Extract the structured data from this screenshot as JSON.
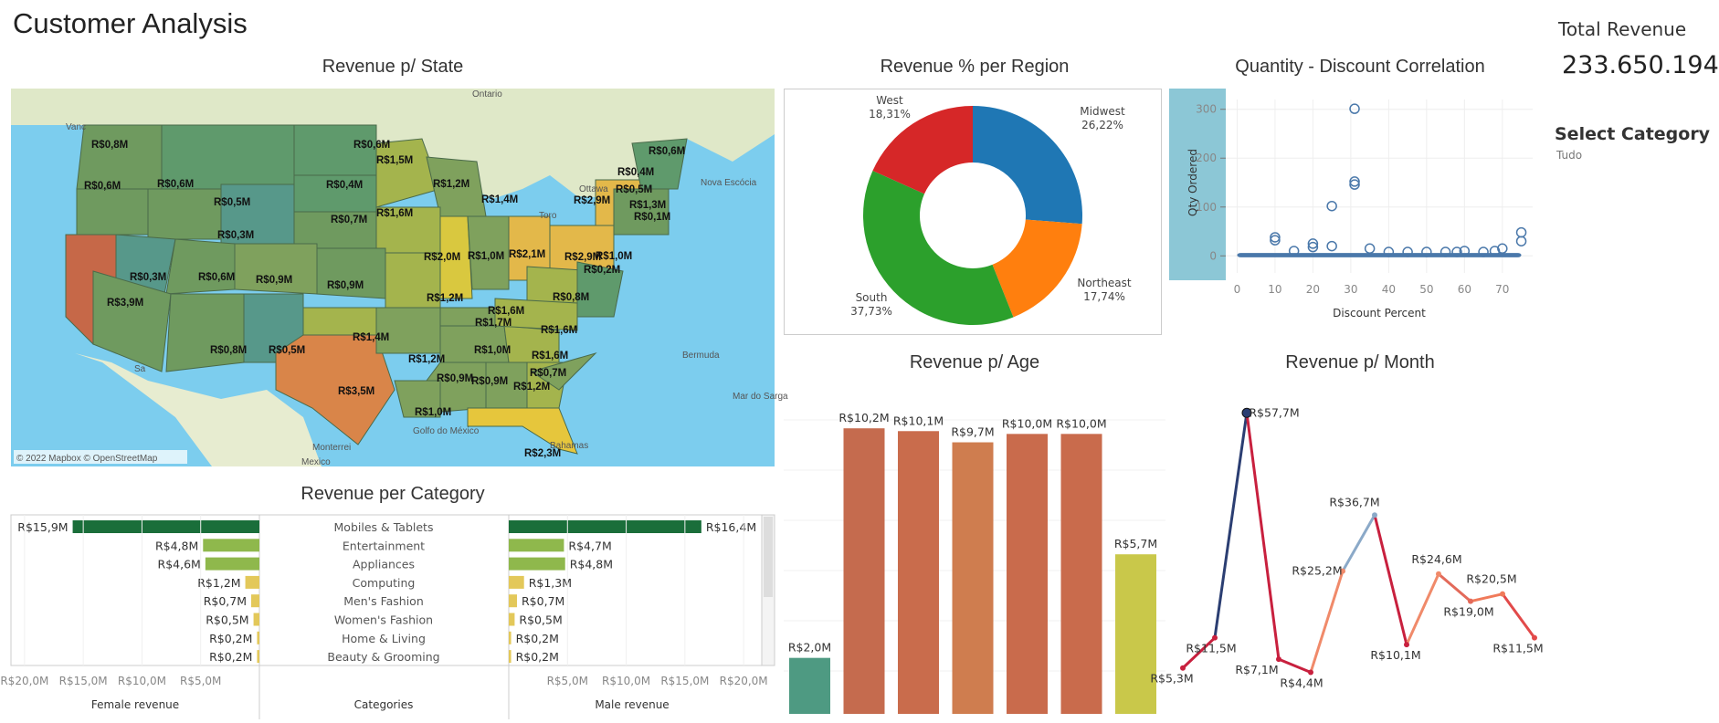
{
  "dashboard": {
    "title": "Customer Analysis",
    "total_revenue_label": "Total Revenue",
    "total_revenue_value": "233.650.194",
    "filter_label": "Select Category",
    "filter_value": "Tudo"
  },
  "map": {
    "title": "Revenue p/ State",
    "attribution": "© 2022 Mapbox © OpenStreetMap",
    "places": [
      "Ontario",
      "Vanc",
      "Ottawa",
      "Toro",
      "Nova Escócia",
      "Bermuda",
      "Mar do Sarga",
      "Golfo do México",
      "Monterrei",
      "Bahamas",
      "Mexico",
      "Sa"
    ],
    "state_labels": [
      "R$0,8M",
      "R$0,6M",
      "R$0,6M",
      "R$0,6M",
      "R$0,5M",
      "R$0,4M",
      "R$1,5M",
      "R$1,2M",
      "R$0,3M",
      "R$0,7M",
      "R$1,6M",
      "R$1,4M",
      "R$2,9M",
      "R$0,5M",
      "R$0,4M",
      "R$0,6M",
      "R$1,3M",
      "R$0,1M",
      "R$0,3M",
      "R$0,6M",
      "R$0,9M",
      "R$0,9M",
      "R$2,0M",
      "R$1,0M",
      "R$2,1M",
      "R$2,9M",
      "R$1,0M",
      "R$3,9M",
      "R$1,6M",
      "R$1,2M",
      "R$0,8M",
      "R$0,2M",
      "R$1,7M",
      "R$1,6M",
      "R$1,4M",
      "R$1,0M",
      "R$1,6M",
      "R$0,8M",
      "R$0,5M",
      "R$1,2M",
      "R$0,9M",
      "R$0,7M",
      "R$3,5M",
      "R$0,9M",
      "R$1,2M",
      "R$1,0M",
      "R$2,3M"
    ]
  },
  "donut": {
    "title": "Revenue % per Region",
    "slices": [
      {
        "name": "Midwest",
        "pct": "26,22%",
        "color": "#1f77b4"
      },
      {
        "name": "Northeast",
        "pct": "17,74%",
        "color": "#ff7f0e"
      },
      {
        "name": "South",
        "pct": "37,73%",
        "color": "#2ca02c"
      },
      {
        "name": "West",
        "pct": "18,31%",
        "color": "#d62728"
      }
    ]
  },
  "scatter": {
    "title": "Quantity - Discount Correlation",
    "xlabel": "Discount Percent",
    "ylabel": "Qty Ordered",
    "xticks": [
      "0",
      "10",
      "20",
      "30",
      "40",
      "50",
      "60",
      "70"
    ],
    "yticks": [
      "0",
      "100",
      "200",
      "300"
    ]
  },
  "age": {
    "title": "Revenue p/ Age"
  },
  "month": {
    "title": "Revenue p/ Month"
  },
  "category": {
    "title": "Revenue per Category",
    "female_header": "Female revenue",
    "male_header": "Male revenue",
    "categories_header": "Categories",
    "female_ticks": [
      "R$20,0M",
      "R$15,0M",
      "R$10,0M",
      "R$5,0M"
    ],
    "male_ticks": [
      "R$5,0M",
      "R$10,0M",
      "R$15,0M",
      "R$20,0M"
    ]
  },
  "chart_data": [
    {
      "type": "pie",
      "title": "Revenue % per Region",
      "categories": [
        "Midwest",
        "Northeast",
        "South",
        "West"
      ],
      "values": [
        26.22,
        17.74,
        37.73,
        18.31
      ]
    },
    {
      "type": "scatter",
      "title": "Quantity - Discount Correlation",
      "xlabel": "Discount Percent",
      "ylabel": "Qty Ordered",
      "xlim": [
        -3,
        78
      ],
      "ylim": [
        -20,
        320
      ],
      "points": [
        [
          31,
          301
        ],
        [
          31,
          152
        ],
        [
          31,
          146
        ],
        [
          25,
          102
        ],
        [
          10,
          38
        ],
        [
          10,
          32
        ],
        [
          20,
          25
        ],
        [
          20,
          18
        ],
        [
          25,
          20
        ],
        [
          35,
          15
        ],
        [
          60,
          10
        ],
        [
          65,
          8
        ],
        [
          68,
          10
        ],
        [
          70,
          15
        ],
        [
          75,
          48
        ],
        [
          75,
          30
        ],
        [
          58,
          8
        ],
        [
          55,
          8
        ],
        [
          50,
          8
        ],
        [
          45,
          8
        ],
        [
          40,
          8
        ],
        [
          15,
          10
        ]
      ],
      "band_range": [
        0,
        75
      ]
    },
    {
      "type": "bar",
      "title": "Revenue p/ Age",
      "values_label": [
        "R$2,0M",
        "R$10,2M",
        "R$10,1M",
        "R$9,7M",
        "R$10,0M",
        "R$10,0M",
        "R$5,7M"
      ],
      "values": [
        2.0,
        10.2,
        10.1,
        9.7,
        10.0,
        10.0,
        5.7
      ],
      "colors": [
        "#4e9a82",
        "#c56b4e",
        "#c96c4c",
        "#cf7d4f",
        "#c96b4c",
        "#c96b4c",
        "#c9c84a"
      ],
      "ylim": [
        0,
        10.5
      ]
    },
    {
      "type": "line",
      "title": "Revenue p/ Month",
      "values_label": [
        "R$5,3M",
        "R$11,5M",
        "R$57,7M",
        "R$7,1M",
        "R$4,4M",
        "R$25,2M",
        "R$36,7M",
        "R$10,1M",
        "R$24,6M",
        "R$19,0M",
        "R$20,5M",
        "R$11,5M"
      ],
      "values": [
        5.3,
        11.5,
        57.7,
        7.1,
        4.4,
        25.2,
        36.7,
        10.1,
        24.6,
        19.0,
        20.5,
        11.5
      ],
      "ylim": [
        0,
        60
      ]
    },
    {
      "type": "bar",
      "title": "Revenue per Category",
      "categories": [
        "Mobiles & Tablets",
        "Entertainment",
        "Appliances",
        "Computing",
        "Men's Fashion",
        "Women's Fashion",
        "Home & Living",
        "Beauty & Grooming"
      ],
      "series": [
        {
          "name": "Female revenue",
          "values": [
            15.9,
            4.8,
            4.6,
            1.2,
            0.7,
            0.5,
            0.2,
            0.2
          ],
          "labels": [
            "R$15,9M",
            "R$4,8M",
            "R$4,6M",
            "R$1,2M",
            "R$0,7M",
            "R$0,5M",
            "R$0,2M",
            "R$0,2M"
          ]
        },
        {
          "name": "Male revenue",
          "values": [
            16.4,
            4.7,
            4.8,
            1.3,
            0.7,
            0.5,
            0.2,
            0.2
          ],
          "labels": [
            "R$16,4M",
            "R$4,7M",
            "R$4,8M",
            "R$1,3M",
            "R$0,7M",
            "R$0,5M",
            "R$0,2M",
            "R$0,2M"
          ]
        }
      ],
      "colors": [
        "#1a6e3a",
        "#8fb84c",
        "#8fb84c",
        "#e3c85a",
        "#e3c85a",
        "#e3c85a",
        "#e3c85a",
        "#e3c85a"
      ],
      "xlim": [
        0,
        21
      ]
    }
  ]
}
